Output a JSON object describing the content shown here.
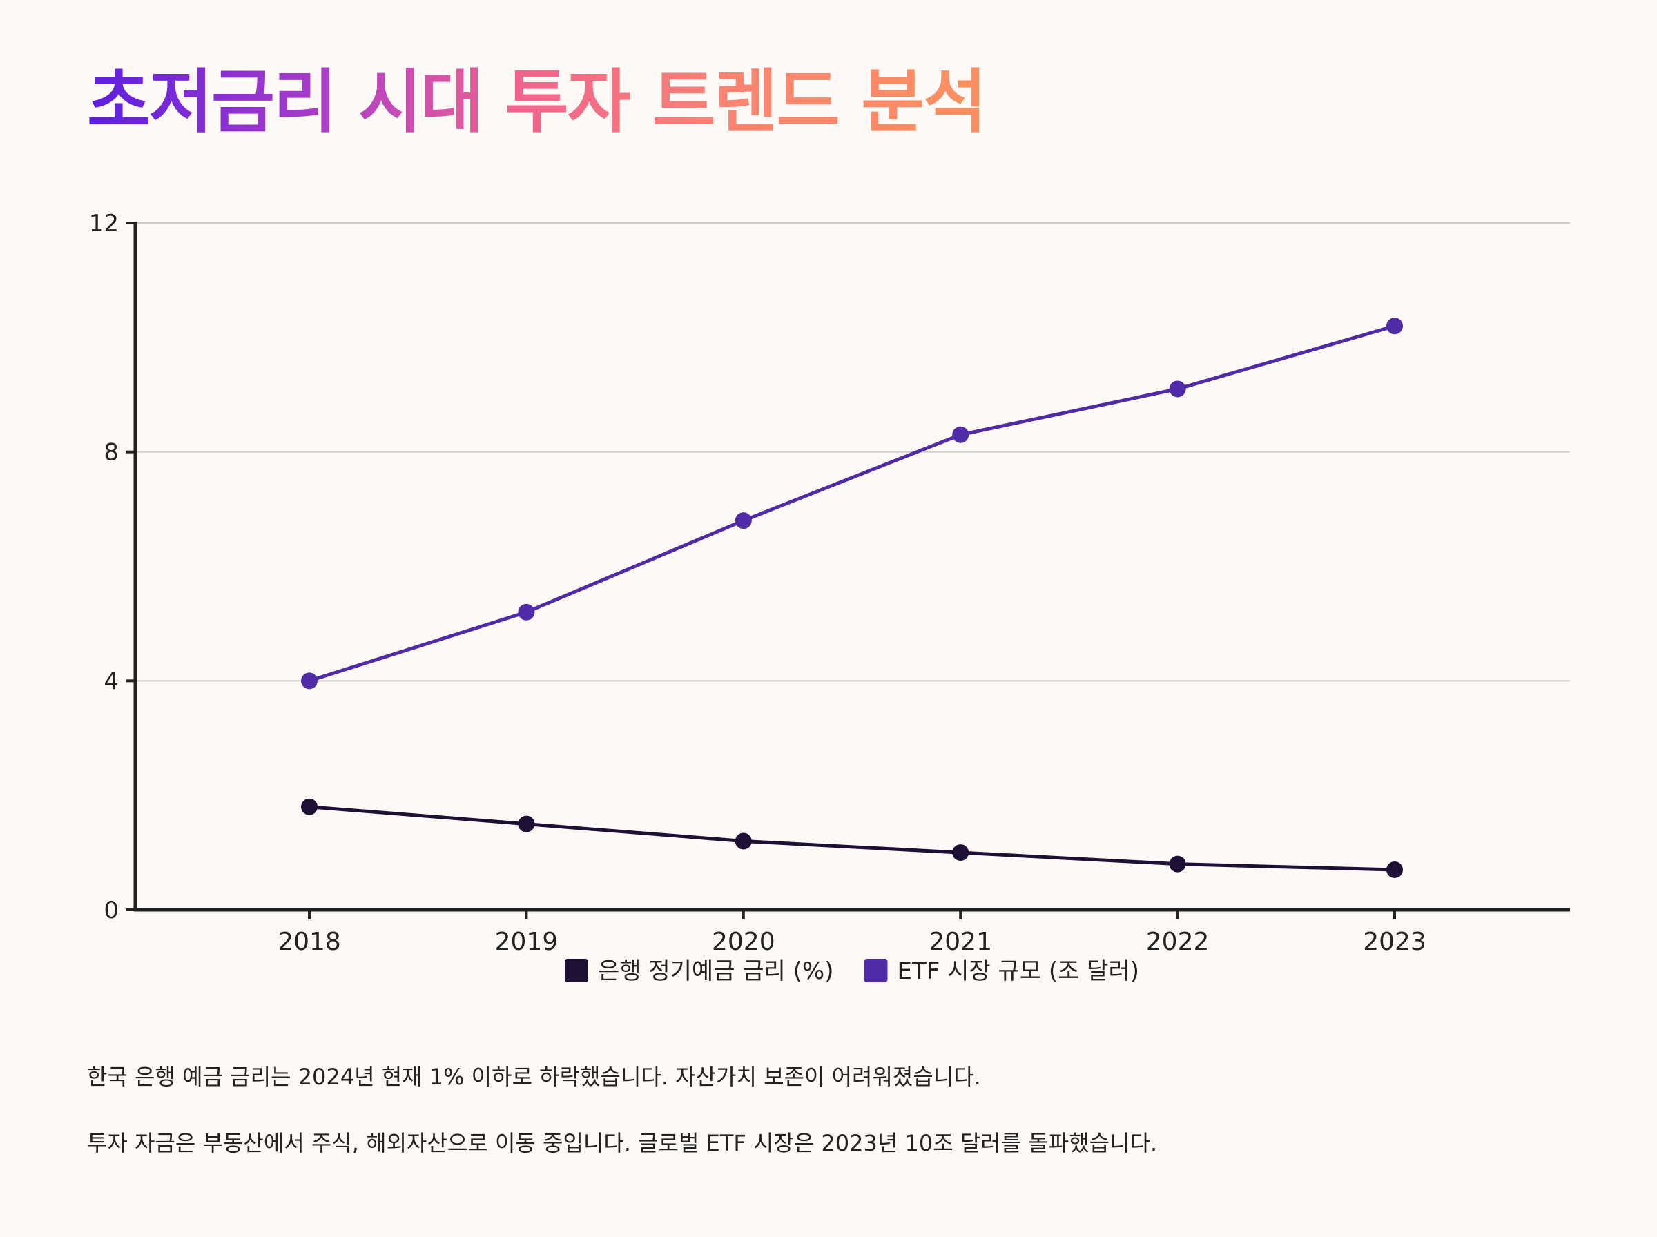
{
  "title": "초저금리 시대 투자 트렌드 분석",
  "chart_data": {
    "type": "line",
    "title": "",
    "xlabel": "",
    "ylabel": "",
    "categories": [
      "2018",
      "2019",
      "2020",
      "2021",
      "2022",
      "2023"
    ],
    "series": [
      {
        "name": "은행 정기예금 금리 (%)",
        "color": "#1e1035",
        "values": [
          1.8,
          1.5,
          1.2,
          1.0,
          0.8,
          0.7
        ]
      },
      {
        "name": "ETF 시장 규모 (조 달러)",
        "color": "#4f2ba8",
        "values": [
          4.0,
          5.2,
          6.8,
          8.3,
          9.1,
          10.2
        ]
      }
    ],
    "ylim": [
      0,
      12
    ],
    "yticks": [
      0,
      4,
      8,
      12
    ],
    "grid": true,
    "legend": "bottom"
  },
  "notes": [
    "한국 은행 예금 금리는 2024년 현재 1% 이하로 하락했습니다. 자산가치 보존이 어려워졌습니다.",
    "투자 자금은 부동산에서 주식, 해외자산으로 이동 중입니다. 글로벌 ETF 시장은 2023년 10조 달러를 돌파했습니다."
  ]
}
